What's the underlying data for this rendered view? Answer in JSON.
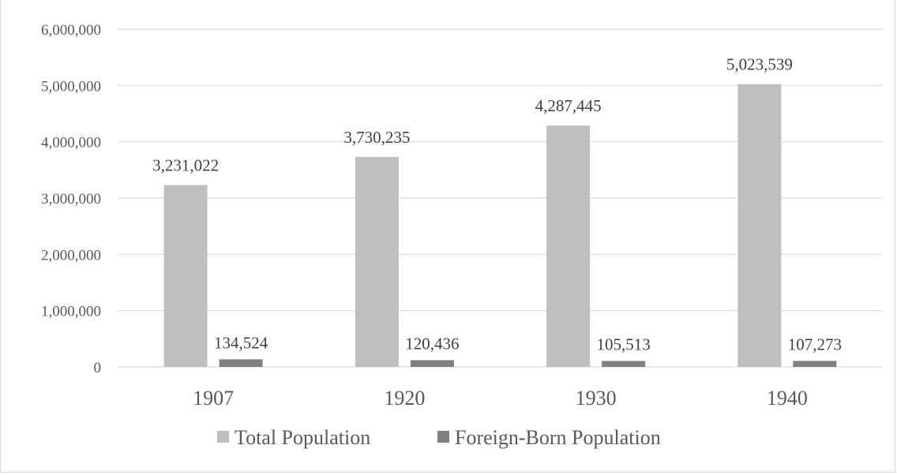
{
  "chart_data": {
    "type": "bar",
    "categories": [
      "1907",
      "1920",
      "1930",
      "1940"
    ],
    "series": [
      {
        "name": "Total Population",
        "values": [
          3231022,
          3730235,
          4287445,
          5023539
        ],
        "labels": [
          "3,231,022",
          "3,730,235",
          "4,287,445",
          "5,023,539"
        ],
        "color": "#bfbfbf"
      },
      {
        "name": "Foreign-Born Population",
        "values": [
          134524,
          120436,
          105513,
          107273
        ],
        "labels": [
          "134,524",
          "120,436",
          "105,513",
          "107,273"
        ],
        "color": "#808080"
      }
    ],
    "ylim": [
      0,
      6000000
    ],
    "yticks": [
      0,
      1000000,
      2000000,
      3000000,
      4000000,
      5000000,
      6000000
    ],
    "ytick_labels": [
      "0",
      "1,000,000",
      "2,000,000",
      "3,000,000",
      "4,000,000",
      "5,000,000",
      "6,000,000"
    ],
    "grid": true,
    "legend": "bottom",
    "gridline_color": "#d9d9d9"
  }
}
